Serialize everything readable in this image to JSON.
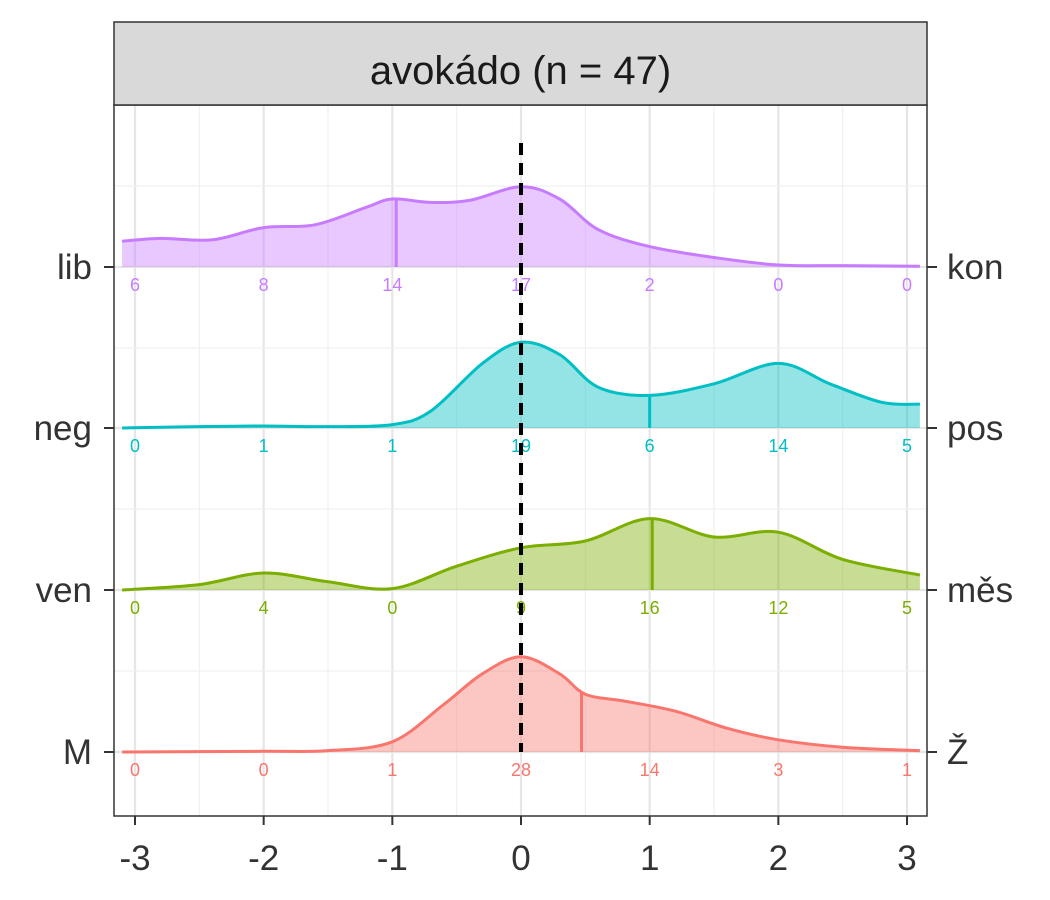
{
  "chart_data": {
    "type": "area",
    "title": "avokádo (n = 47)",
    "x": [
      -3,
      -2,
      -1,
      0,
      1,
      2,
      3
    ],
    "xlim": [
      -3.1,
      3.1
    ],
    "x_ticks": [
      "-3",
      "-2",
      "-1",
      "0",
      "1",
      "2",
      "3"
    ],
    "reference_line_x": 0,
    "grid": true,
    "series": [
      {
        "left_label": "lib",
        "right_label": "kon",
        "color": "#c77cff",
        "counts": [
          6,
          8,
          14,
          17,
          2,
          0,
          0
        ],
        "median": -0.97,
        "density": [
          [
            -3.1,
            0.38
          ],
          [
            -2.8,
            0.42
          ],
          [
            -2.4,
            0.4
          ],
          [
            -2.0,
            0.58
          ],
          [
            -1.6,
            0.62
          ],
          [
            -1.2,
            0.88
          ],
          [
            -1.0,
            1.0
          ],
          [
            -0.7,
            0.95
          ],
          [
            -0.4,
            0.98
          ],
          [
            0.0,
            1.18
          ],
          [
            0.3,
            1.0
          ],
          [
            0.6,
            0.55
          ],
          [
            1.0,
            0.3
          ],
          [
            1.5,
            0.14
          ],
          [
            2.0,
            0.03
          ],
          [
            2.5,
            0.02
          ],
          [
            3.1,
            0.01
          ]
        ]
      },
      {
        "left_label": "neg",
        "right_label": "pos",
        "color": "#00bfc4",
        "counts": [
          0,
          1,
          1,
          19,
          6,
          14,
          5
        ],
        "median": 1.0,
        "density": [
          [
            -3.1,
            0.0
          ],
          [
            -2.5,
            0.02
          ],
          [
            -2.0,
            0.03
          ],
          [
            -1.5,
            0.02
          ],
          [
            -1.0,
            0.05
          ],
          [
            -0.7,
            0.25
          ],
          [
            -0.3,
            0.95
          ],
          [
            0.0,
            1.26
          ],
          [
            0.3,
            1.08
          ],
          [
            0.6,
            0.6
          ],
          [
            1.0,
            0.48
          ],
          [
            1.5,
            0.65
          ],
          [
            2.0,
            0.95
          ],
          [
            2.4,
            0.65
          ],
          [
            2.8,
            0.38
          ],
          [
            3.1,
            0.35
          ]
        ]
      },
      {
        "left_label": "ven",
        "right_label": "měs",
        "color": "#7cae00",
        "counts": [
          0,
          4,
          0,
          9,
          16,
          12,
          5
        ],
        "median": 1.02,
        "density": [
          [
            -3.1,
            0.0
          ],
          [
            -2.5,
            0.08
          ],
          [
            -2.0,
            0.25
          ],
          [
            -1.5,
            0.12
          ],
          [
            -1.0,
            0.02
          ],
          [
            -0.5,
            0.35
          ],
          [
            0.0,
            0.62
          ],
          [
            0.5,
            0.72
          ],
          [
            1.0,
            1.05
          ],
          [
            1.5,
            0.78
          ],
          [
            2.0,
            0.85
          ],
          [
            2.5,
            0.45
          ],
          [
            3.1,
            0.22
          ]
        ]
      },
      {
        "left_label": "M",
        "right_label": "Ž",
        "color": "#f8766d",
        "counts": [
          0,
          0,
          1,
          28,
          14,
          3,
          1
        ],
        "median": 0.47,
        "density": [
          [
            -3.1,
            0.0
          ],
          [
            -2.0,
            0.01
          ],
          [
            -1.5,
            0.02
          ],
          [
            -1.0,
            0.15
          ],
          [
            -0.6,
            0.7
          ],
          [
            -0.3,
            1.15
          ],
          [
            0.0,
            1.4
          ],
          [
            0.3,
            1.15
          ],
          [
            0.5,
            0.85
          ],
          [
            0.8,
            0.75
          ],
          [
            1.2,
            0.6
          ],
          [
            1.6,
            0.35
          ],
          [
            2.0,
            0.18
          ],
          [
            2.5,
            0.07
          ],
          [
            3.1,
            0.02
          ]
        ]
      }
    ]
  }
}
